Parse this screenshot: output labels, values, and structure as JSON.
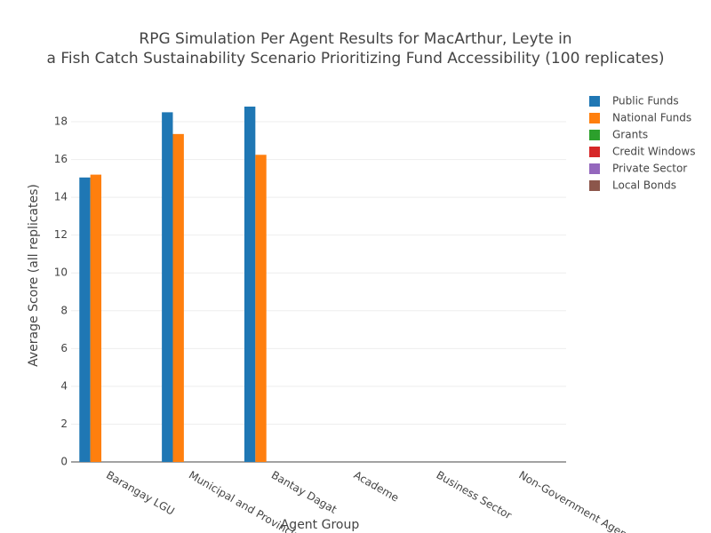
{
  "chart_data": {
    "type": "bar",
    "title": [
      "RPG Simulation Per Agent Results for MacArthur, Leyte in",
      "a Fish Catch Sustainability Scenario Prioritizing Fund Accessibility (100 replicates)"
    ],
    "xlabel": "Agent Group",
    "ylabel": "Average Score (all replicates)",
    "categories": [
      "Barangay LGU",
      "Municipal and Provincial LGU",
      "Bantay Dagat",
      "Academe",
      "Business Sector",
      "Non-Government Agencies"
    ],
    "series": [
      {
        "name": "Public Funds",
        "color": "#1f77b4",
        "values": [
          15.05,
          18.5,
          18.8,
          null,
          null,
          null
        ]
      },
      {
        "name": "National Funds",
        "color": "#ff7f0e",
        "values": [
          15.2,
          17.35,
          16.25,
          null,
          null,
          null
        ]
      },
      {
        "name": "Grants",
        "color": "#2ca02c",
        "values": [
          null,
          null,
          null,
          null,
          null,
          null
        ]
      },
      {
        "name": "Credit Windows",
        "color": "#d62728",
        "values": [
          null,
          null,
          null,
          null,
          null,
          null
        ]
      },
      {
        "name": "Private Sector",
        "color": "#9467bd",
        "values": [
          null,
          null,
          null,
          null,
          null,
          null
        ]
      },
      {
        "name": "Local Bonds",
        "color": "#8c564b",
        "values": [
          null,
          null,
          null,
          null,
          null,
          null
        ]
      }
    ],
    "ylim": [
      0,
      19.74
    ],
    "yticks": [
      0,
      2,
      4,
      6,
      8,
      10,
      12,
      14,
      16,
      18
    ],
    "grid": true,
    "legend": "right"
  }
}
